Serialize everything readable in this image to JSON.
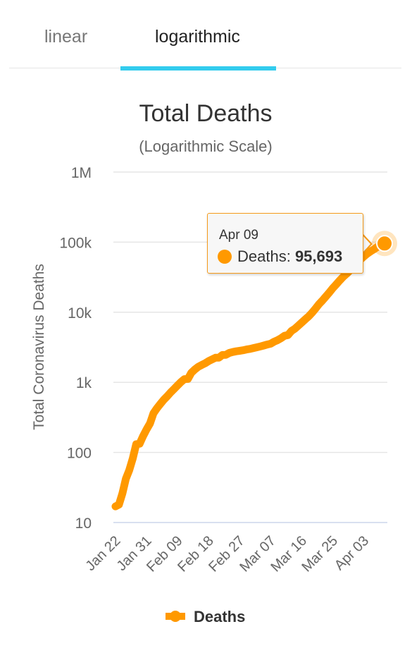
{
  "tabs": [
    {
      "label": "linear",
      "active": false
    },
    {
      "label": "logarithmic",
      "active": true
    }
  ],
  "colors": {
    "series": "#ff9900",
    "tab_underline": "#33ccee",
    "grid": "#e6e6e6",
    "x_axis": "#ccd6eb"
  },
  "chart_data": {
    "type": "line",
    "title": "Total Deaths",
    "subtitle": "(Logarithmic Scale)",
    "ylabel": "Total Coronavirus Deaths",
    "xlabel": "",
    "y_scale": "log",
    "ylim": [
      10,
      1000000
    ],
    "y_ticks": [
      10,
      100,
      1000,
      10000,
      100000,
      1000000
    ],
    "y_tick_labels": [
      "10",
      "100",
      "1k",
      "10k",
      "100k",
      "1M"
    ],
    "x_tick_labels": [
      "Jan 22",
      "Jan 31",
      "Feb 09",
      "Feb 18",
      "Feb 27",
      "Mar 07",
      "Mar 16",
      "Mar 25",
      "Apr 03"
    ],
    "legend": {
      "position": "bottom-center"
    },
    "grid": true,
    "series": [
      {
        "name": "Deaths",
        "x": [
          "Jan 22",
          "Jan 23",
          "Jan 24",
          "Jan 25",
          "Jan 26",
          "Jan 27",
          "Jan 28",
          "Jan 29",
          "Jan 30",
          "Jan 31",
          "Feb 01",
          "Feb 02",
          "Feb 03",
          "Feb 04",
          "Feb 05",
          "Feb 06",
          "Feb 07",
          "Feb 08",
          "Feb 09",
          "Feb 10",
          "Feb 11",
          "Feb 12",
          "Feb 13",
          "Feb 14",
          "Feb 15",
          "Feb 16",
          "Feb 17",
          "Feb 18",
          "Feb 19",
          "Feb 20",
          "Feb 21",
          "Feb 22",
          "Feb 23",
          "Feb 24",
          "Feb 25",
          "Feb 26",
          "Feb 27",
          "Feb 28",
          "Feb 29",
          "Mar 01",
          "Mar 02",
          "Mar 03",
          "Mar 04",
          "Mar 05",
          "Mar 06",
          "Mar 07",
          "Mar 08",
          "Mar 09",
          "Mar 10",
          "Mar 11",
          "Mar 12",
          "Mar 13",
          "Mar 14",
          "Mar 15",
          "Mar 16",
          "Mar 17",
          "Mar 18",
          "Mar 19",
          "Mar 20",
          "Mar 21",
          "Mar 22",
          "Mar 23",
          "Mar 24",
          "Mar 25",
          "Mar 26",
          "Mar 27",
          "Mar 28",
          "Mar 29",
          "Mar 30",
          "Mar 31",
          "Apr 01",
          "Apr 02",
          "Apr 03",
          "Apr 04",
          "Apr 05",
          "Apr 06",
          "Apr 07",
          "Apr 08",
          "Apr 09"
        ],
        "values": [
          17,
          18,
          26,
          42,
          56,
          82,
          131,
          133,
          171,
          213,
          259,
          362,
          426,
          492,
          564,
          634,
          719,
          806,
          906,
          1013,
          1113,
          1118,
          1371,
          1523,
          1666,
          1770,
          1868,
          2007,
          2122,
          2247,
          2251,
          2458,
          2469,
          2629,
          2708,
          2770,
          2814,
          2872,
          2941,
          2996,
          3085,
          3160,
          3254,
          3348,
          3460,
          3558,
          3803,
          3996,
          4262,
          4615,
          4720,
          5404,
          5819,
          6440,
          7126,
          7905,
          8733,
          9867,
          11299,
          13018,
          14687,
          16759,
          19147,
          22020,
          24899,
          28346,
          31992,
          35372,
          39567,
          44350,
          50083,
          56320,
          62403,
          68614,
          74156,
          79452,
          86026,
          92463,
          95693
        ]
      }
    ]
  },
  "tooltip": {
    "date": "Apr 09",
    "series_label": "Deaths: ",
    "value": "95,693"
  }
}
